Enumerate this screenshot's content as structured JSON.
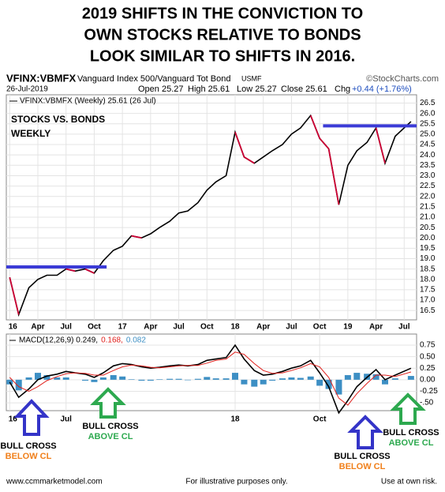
{
  "title": [
    "2019 SHIFTS IN THE CONVICTION TO",
    "OWN STOCKS RELATIVE TO BONDS",
    "LOOK SIMILAR TO SHIFTS IN 2016."
  ],
  "header": {
    "symbol": "VFINX:VBMFX",
    "name": "Vanguard Index 500/Vanguard Tot Bond",
    "exchange": "USMF",
    "source": "©StockCharts.com",
    "date": "26-Jul-2019",
    "open": "Open 25.27",
    "high": "High 25.61",
    "low": "Low 25.27",
    "close": "Close 25.61",
    "chg_label": "Chg",
    "chg": "+0.44 (+1.76%)"
  },
  "chart_data": [
    {
      "type": "line",
      "x": [
        2016.0,
        2016.08,
        2016.17,
        2016.25,
        2016.33,
        2016.42,
        2016.5,
        2016.58,
        2016.67,
        2016.75,
        2016.83,
        2016.92,
        2017.0,
        2017.08,
        2017.17,
        2017.25,
        2017.33,
        2017.42,
        2017.5,
        2017.58,
        2017.67,
        2017.75,
        2017.83,
        2017.92,
        2018.0,
        2018.08,
        2018.17,
        2018.25,
        2018.33,
        2018.42,
        2018.5,
        2018.58,
        2018.67,
        2018.75,
        2018.83,
        2018.92,
        2019.0,
        2019.08,
        2019.17,
        2019.25,
        2019.33,
        2019.42,
        2019.56
      ],
      "series": [
        {
          "name": "VFINX:VBMFX (Weekly) 25.61 (26 Jul)",
          "color": "#000000",
          "down_color": "#cc0033",
          "values": [
            18.1,
            16.3,
            17.6,
            18.0,
            18.2,
            18.2,
            18.5,
            18.4,
            18.5,
            18.3,
            18.9,
            19.4,
            19.6,
            20.1,
            20.0,
            20.2,
            20.5,
            20.8,
            21.2,
            21.3,
            21.7,
            22.3,
            22.7,
            23.0,
            25.1,
            23.9,
            23.6,
            23.9,
            24.2,
            24.5,
            25.0,
            25.3,
            25.9,
            24.8,
            24.3,
            21.6,
            23.5,
            24.2,
            24.6,
            25.3,
            23.6,
            24.9,
            25.61
          ]
        }
      ],
      "levels": {
        "color": "#3b3bd6",
        "lines": [
          {
            "value": 18.6,
            "x": [
              2015.97,
              2016.86
            ]
          },
          {
            "value": 25.4,
            "x": [
              2018.78,
              2019.61
            ]
          }
        ]
      },
      "annotations": [
        "STOCKS VS. BONDS",
        "WEEKLY"
      ],
      "xlim": [
        2015.97,
        2019.61
      ],
      "xticks": [
        {
          "value": 2016.0,
          "label": "16"
        },
        {
          "value": 2016.25,
          "label": "Apr"
        },
        {
          "value": 2016.5,
          "label": "Jul"
        },
        {
          "value": 2016.75,
          "label": "Oct"
        },
        {
          "value": 2017.0,
          "label": "17"
        },
        {
          "value": 2017.25,
          "label": "Apr"
        },
        {
          "value": 2017.5,
          "label": "Jul"
        },
        {
          "value": 2017.75,
          "label": "Oct"
        },
        {
          "value": 2018.0,
          "label": "18"
        },
        {
          "value": 2018.25,
          "label": "Apr"
        },
        {
          "value": 2018.5,
          "label": "Jul"
        },
        {
          "value": 2018.75,
          "label": "Oct"
        },
        {
          "value": 2019.0,
          "label": "19"
        },
        {
          "value": 2019.25,
          "label": "Apr"
        },
        {
          "value": 2019.5,
          "label": "Jul"
        }
      ],
      "ylim": [
        16.05,
        26.9
      ],
      "yticks": [
        16.5,
        {
          "value": 17,
          "label": "17.0"
        },
        17.5,
        {
          "value": 18,
          "label": "18.0"
        },
        18.5,
        {
          "value": 19,
          "label": "19.0"
        },
        19.5,
        {
          "value": 20,
          "label": "20.0"
        },
        20.5,
        {
          "value": 21,
          "label": "21.0"
        },
        21.5,
        {
          "value": 22,
          "label": "22.0"
        },
        22.5,
        {
          "value": 23,
          "label": "23.0"
        },
        23.5,
        {
          "value": 24,
          "label": "24.0"
        },
        24.5,
        {
          "value": 25,
          "label": "25.0"
        },
        25.5,
        {
          "value": 26,
          "label": "26.0"
        },
        26.5
      ],
      "grid": true
    },
    {
      "type": "macd",
      "x": [
        2016.0,
        2016.08,
        2016.17,
        2016.25,
        2016.33,
        2016.42,
        2016.5,
        2016.58,
        2016.67,
        2016.75,
        2016.83,
        2016.92,
        2017.0,
        2017.08,
        2017.17,
        2017.25,
        2017.33,
        2017.42,
        2017.5,
        2017.58,
        2017.67,
        2017.75,
        2017.83,
        2017.92,
        2018.0,
        2018.08,
        2018.17,
        2018.25,
        2018.33,
        2018.42,
        2018.5,
        2018.58,
        2018.67,
        2018.75,
        2018.83,
        2018.92,
        2019.0,
        2019.08,
        2019.17,
        2019.25,
        2019.33,
        2019.42,
        2019.56
      ],
      "series": [
        {
          "name": "MACD(12,26,9) 0.249,",
          "color": "#000000",
          "style": "line",
          "values": [
            -0.05,
            -0.38,
            -0.2,
            0.0,
            0.08,
            0.12,
            0.18,
            0.15,
            0.12,
            0.05,
            0.15,
            0.3,
            0.35,
            0.33,
            0.28,
            0.25,
            0.27,
            0.3,
            0.32,
            0.3,
            0.33,
            0.42,
            0.45,
            0.48,
            0.75,
            0.45,
            0.2,
            0.1,
            0.12,
            0.18,
            0.25,
            0.3,
            0.42,
            0.15,
            -0.15,
            -0.72,
            -0.45,
            -0.15,
            0.05,
            0.22,
            0.0,
            0.1,
            0.249
          ]
        },
        {
          "name": "0.168,",
          "color": "#e0201c",
          "style": "line",
          "values": [
            0.05,
            -0.15,
            -0.25,
            -0.15,
            -0.02,
            0.07,
            0.13,
            0.15,
            0.14,
            0.1,
            0.1,
            0.2,
            0.28,
            0.32,
            0.3,
            0.27,
            0.26,
            0.28,
            0.3,
            0.31,
            0.31,
            0.36,
            0.42,
            0.45,
            0.6,
            0.55,
            0.35,
            0.2,
            0.14,
            0.15,
            0.2,
            0.26,
            0.35,
            0.28,
            0.05,
            -0.4,
            -0.55,
            -0.3,
            -0.08,
            0.1,
            0.1,
            0.07,
            0.168
          ]
        },
        {
          "name": "0.082",
          "color": "#3d8fc4",
          "style": "bar",
          "values": [
            -0.1,
            -0.23,
            0.05,
            0.15,
            0.1,
            0.05,
            0.05,
            0.0,
            -0.02,
            -0.05,
            0.05,
            0.1,
            0.07,
            0.01,
            -0.02,
            -0.02,
            0.01,
            0.02,
            0.02,
            -0.01,
            0.02,
            0.06,
            0.03,
            0.03,
            0.15,
            -0.1,
            -0.15,
            -0.1,
            -0.02,
            0.03,
            0.05,
            0.04,
            0.07,
            -0.13,
            -0.2,
            -0.32,
            0.1,
            0.15,
            0.13,
            0.12,
            -0.1,
            0.03,
            0.082
          ]
        }
      ],
      "xlim": [
        2015.97,
        2019.61
      ],
      "xticks": [
        {
          "value": 2016.0,
          "label": "16"
        },
        {
          "value": 2016.5,
          "label": "Jul"
        },
        {
          "value": 2018.0,
          "label": "18"
        },
        {
          "value": 2018.75,
          "label": "Oct"
        }
      ],
      "ylim": [
        -0.67,
        0.99
      ],
      "yticks": [
        0.75,
        {
          "value": 0.5,
          "label": "0.50"
        },
        0.25,
        {
          "value": 0,
          "label": "0.00"
        },
        -0.25,
        {
          "value": -0.5,
          "label": "-.50"
        }
      ],
      "grid": true
    }
  ],
  "callouts": [
    {
      "title": "BULL CROSS",
      "text": "BELOW CL",
      "color": "#f07f1a"
    },
    {
      "title": "BULL CROSS",
      "text": "ABOVE CL",
      "color": "#2da94f"
    },
    {
      "title": "BULL CROSS",
      "text": "BELOW CL",
      "color": "#f07f1a"
    },
    {
      "title": "BULL CROSS",
      "text": "ABOVE CL",
      "color": "#2da94f"
    }
  ],
  "footer": {
    "left": "www.ccmmarketmodel.com",
    "center": "For illustrative purposes only.",
    "right": "Use at own risk."
  }
}
